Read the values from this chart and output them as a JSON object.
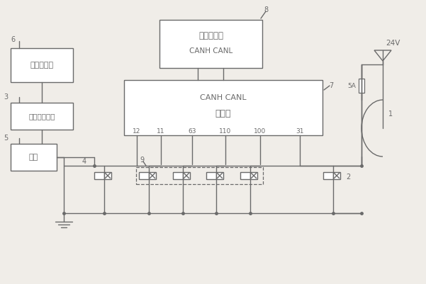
{
  "bg_color": "#f0ede8",
  "line_color": "#6a6a6a",
  "box_fc": "#ffffff",
  "labels": {
    "box1": "多功能机具",
    "box2": "标准快换装置",
    "box3": "主泵",
    "monitor_l1": "电子监控器",
    "monitor_l2": "CANH CANL",
    "ctrl_l1": "CANH CANL",
    "ctrl_l2": "控制器",
    "voltage": "24V",
    "fuse": "5A"
  },
  "nums": {
    "1": "1",
    "2": "2",
    "3": "3",
    "4": "4",
    "5": "5",
    "6": "6",
    "7": "7",
    "8": "8",
    "9": "9",
    "11": "11",
    "12": "12",
    "31": "31",
    "63": "63",
    "100": "100",
    "110": "110"
  },
  "pin_labels": [
    "12",
    "11",
    "63",
    "110",
    "100",
    "31"
  ]
}
